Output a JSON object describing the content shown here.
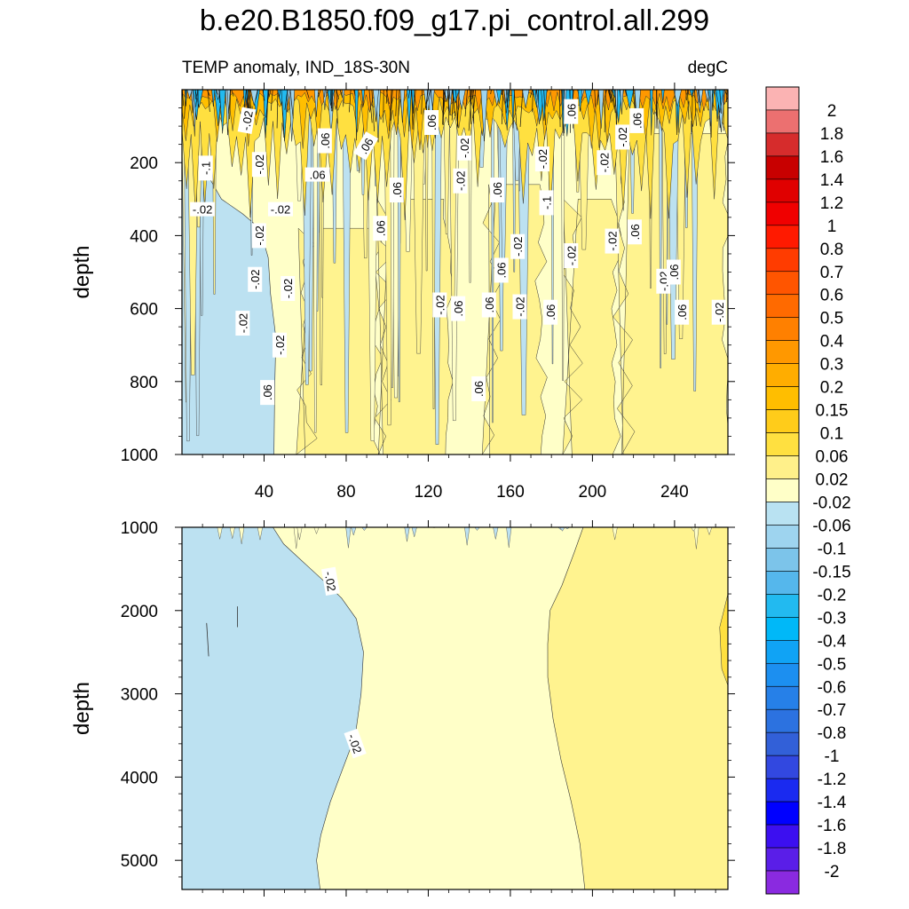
{
  "title": "b.e20.B1850.f09_g17.pi_control.all.299",
  "subtitle_left": "TEMP anomaly, IND_18S-30N",
  "subtitle_right": "degC",
  "chart_data": [
    {
      "type": "contour",
      "panel": "upper",
      "xlabel": "",
      "ylabel": "depth",
      "xlim": [
        0,
        266
      ],
      "ylim": [
        1000,
        0
      ],
      "x_ticks": [
        "40",
        "80",
        "120",
        "160",
        "200",
        "240"
      ],
      "x_tick_values": [
        40,
        80,
        120,
        160,
        200,
        240
      ],
      "y_ticks": [
        "200",
        "400",
        "600",
        "800",
        "1000"
      ],
      "y_tick_values": [
        200,
        400,
        600,
        800,
        1000
      ],
      "contour_labels": [
        "-.02",
        ".06",
        ".06",
        ".06",
        ".06",
        ".06",
        "-.1",
        "-.02",
        "-.02",
        "-.02",
        "-.02",
        "-.02",
        "-.02",
        "-.02",
        "-.02",
        ".06",
        ".06",
        ".06",
        "-.02",
        "-.02",
        ".06",
        "-.02",
        ".06",
        "-.1",
        "-.02",
        "-.02",
        "-.02",
        "-.02",
        "-.02",
        ".06",
        "-.02",
        ".06",
        "-.02",
        ".06",
        ".06",
        "-.02",
        ".06",
        ".06",
        ".06",
        "-.02",
        ".06"
      ],
      "regions": [
        {
          "level": "-0.06 to -0.02",
          "x_range": [
            0,
            45
          ],
          "depth_range": [
            150,
            1000
          ]
        },
        {
          "level": "0.02 to 0.06",
          "x_range": [
            45,
            266
          ],
          "depth_range": [
            400,
            1000
          ]
        },
        {
          "level": "0.06 to 0.3",
          "x_range": [
            0,
            266
          ],
          "depth_range": [
            0,
            400
          ]
        }
      ]
    },
    {
      "type": "contour",
      "panel": "lower",
      "xlabel": "",
      "ylabel": "depth",
      "xlim": [
        0,
        266
      ],
      "ylim": [
        5350,
        1000
      ],
      "y_ticks": [
        "1000",
        "2000",
        "3000",
        "4000",
        "5000"
      ],
      "y_tick_values": [
        1000,
        2000,
        3000,
        4000,
        5000
      ],
      "contour_labels": [
        "-.02",
        "-.02"
      ],
      "regions": [
        {
          "level": "-0.06 to -0.02",
          "x_range": [
            0,
            90
          ],
          "depth_range": [
            1000,
            5350
          ]
        },
        {
          "level": "-0.02 to 0.02",
          "x_range": [
            45,
            196
          ],
          "depth_range": [
            1000,
            5350
          ]
        },
        {
          "level": "0.02 to 0.06",
          "x_range": [
            178,
            266
          ],
          "depth_range": [
            1000,
            5350
          ]
        }
      ]
    }
  ],
  "colorbar": {
    "labels": [
      "2",
      "1.8",
      "1.6",
      "1.4",
      "1.2",
      "1",
      "0.8",
      "0.7",
      "0.6",
      "0.5",
      "0.4",
      "0.3",
      "0.2",
      "0.15",
      "0.1",
      "0.06",
      "0.02",
      "-0.02",
      "-0.06",
      "-0.1",
      "-0.15",
      "-0.2",
      "-0.3",
      "-0.4",
      "-0.5",
      "-0.6",
      "-0.7",
      "-0.8",
      "-1",
      "-1.2",
      "-1.4",
      "-1.6",
      "-1.8",
      "-2"
    ],
    "colors": [
      "#fbb3b3",
      "#ec7070",
      "#d62c2c",
      "#c80000",
      "#e00000",
      "#f00000",
      "#ff1a00",
      "#ff3c00",
      "#ff5500",
      "#ff6a00",
      "#ff8000",
      "#ff9800",
      "#ffad00",
      "#ffbe00",
      "#ffcc1a",
      "#ffe040",
      "#fff08a",
      "#ffffc8",
      "#b9e2f2",
      "#9ed4ef",
      "#7cc4ea",
      "#55b7ec",
      "#22baf0",
      "#00b8f8",
      "#10a3f5",
      "#1c8ff0",
      "#2680e8",
      "#2c72e0",
      "#3260d8",
      "#3248e0",
      "#1a2af0",
      "#0000ff",
      "#3c0ff0",
      "#5a1ee8",
      "#8a2ae0"
    ]
  },
  "fill_colors": {
    "neg_light": "#bce1f1",
    "neg_mid": "#9fd4ee",
    "neg_dark": "#6cc0ec",
    "pos_light": "#ffffc8",
    "pos_mid": "#fff38f",
    "pos_strong": "#ffe040",
    "pos_orange": "#ffbf00",
    "deep_orange": "#ff9800",
    "blue_strong": "#22baf0"
  }
}
